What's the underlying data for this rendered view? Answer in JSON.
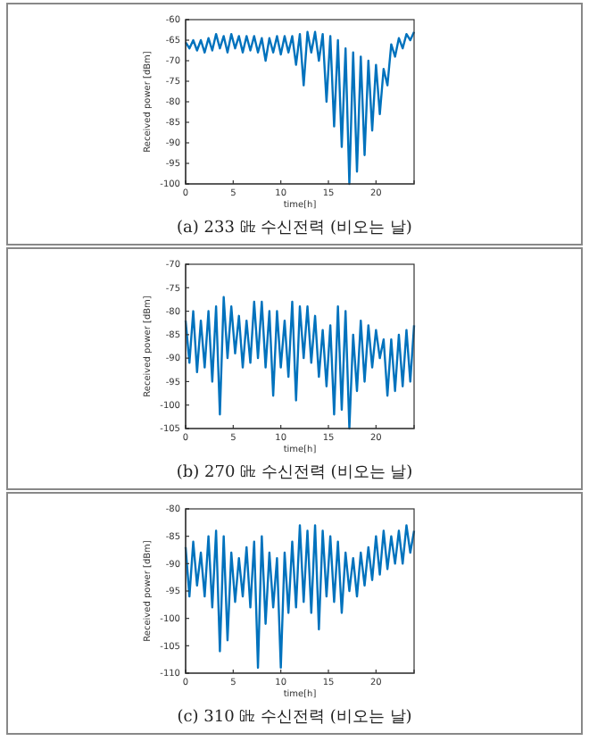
{
  "chart_data": [
    {
      "type": "line",
      "title": "(a) 233 ㎓ 수신전력 (비오는 날)",
      "xlabel": "time[h]",
      "ylabel": "Received power [dBm]",
      "xlim": [
        0,
        24
      ],
      "xticks": [
        0,
        5,
        10,
        15,
        20
      ],
      "ylim": [
        -100,
        -60
      ],
      "yticks": [
        -100,
        -95,
        -90,
        -85,
        -80,
        -75,
        -70,
        -65,
        -60
      ],
      "x": [
        0,
        0.4,
        0.8,
        1.2,
        1.6,
        2.0,
        2.4,
        2.8,
        3.2,
        3.6,
        4.0,
        4.4,
        4.8,
        5.2,
        5.6,
        6.0,
        6.4,
        6.8,
        7.2,
        7.6,
        8.0,
        8.4,
        8.8,
        9.2,
        9.6,
        10.0,
        10.4,
        10.8,
        11.2,
        11.6,
        12.0,
        12.4,
        12.8,
        13.2,
        13.6,
        14.0,
        14.4,
        14.8,
        15.2,
        15.6,
        16.0,
        16.4,
        16.8,
        17.2,
        17.6,
        18.0,
        18.4,
        18.8,
        19.2,
        19.6,
        20.0,
        20.4,
        20.8,
        21.2,
        21.6,
        22.0,
        22.4,
        22.8,
        23.2,
        23.6,
        24.0
      ],
      "series": [
        {
          "color": "#0072bd",
          "values": [
            -65.5,
            -67,
            -65,
            -67.5,
            -65,
            -68,
            -64.5,
            -67.5,
            -63.5,
            -67,
            -64,
            -68,
            -63.5,
            -67,
            -64,
            -68,
            -64,
            -67.5,
            -64,
            -68,
            -64.5,
            -70,
            -64.5,
            -68,
            -64,
            -68.5,
            -64,
            -68,
            -64,
            -71,
            -63.5,
            -76,
            -63,
            -68,
            -63,
            -70,
            -63.5,
            -80,
            -64,
            -86,
            -65,
            -91,
            -67,
            -100,
            -68,
            -97,
            -69,
            -93,
            -70,
            -87,
            -71,
            -83,
            -72,
            -76,
            -66,
            -69,
            -64.5,
            -67,
            -63.5,
            -65,
            -63
          ]
        }
      ]
    },
    {
      "type": "line",
      "title": "(b) 270 ㎓ 수신전력 (비오는 날)",
      "xlabel": "time[h]",
      "ylabel": "Received power [dBm]",
      "xlim": [
        0,
        24
      ],
      "xticks": [
        0,
        5,
        10,
        15,
        20
      ],
      "ylim": [
        -105,
        -70
      ],
      "yticks": [
        -105,
        -100,
        -95,
        -90,
        -85,
        -80,
        -75,
        -70
      ],
      "x": [
        0,
        0.4,
        0.8,
        1.2,
        1.6,
        2.0,
        2.4,
        2.8,
        3.2,
        3.6,
        4.0,
        4.4,
        4.8,
        5.2,
        5.6,
        6.0,
        6.4,
        6.8,
        7.2,
        7.6,
        8.0,
        8.4,
        8.8,
        9.2,
        9.6,
        10.0,
        10.4,
        10.8,
        11.2,
        11.6,
        12.0,
        12.4,
        12.8,
        13.2,
        13.6,
        14.0,
        14.4,
        14.8,
        15.2,
        15.6,
        16.0,
        16.4,
        16.8,
        17.2,
        17.6,
        18.0,
        18.4,
        18.8,
        19.2,
        19.6,
        20.0,
        20.4,
        20.8,
        21.2,
        21.6,
        22.0,
        22.4,
        22.8,
        23.2,
        23.6,
        24.0
      ],
      "series": [
        {
          "color": "#0072bd",
          "values": [
            -82,
            -91,
            -80,
            -93,
            -82,
            -92,
            -80,
            -95,
            -79,
            -102,
            -77,
            -90,
            -79,
            -89,
            -81,
            -92,
            -82,
            -91,
            -78,
            -90,
            -78,
            -92,
            -80,
            -98,
            -80,
            -92,
            -82,
            -94,
            -78,
            -99,
            -79,
            -90,
            -79,
            -91,
            -81,
            -94,
            -84,
            -96,
            -83,
            -102,
            -79,
            -101,
            -80,
            -105,
            -85,
            -97,
            -82,
            -95,
            -83,
            -92,
            -84,
            -90,
            -86,
            -98,
            -86,
            -97,
            -85,
            -96,
            -84,
            -95,
            -83
          ]
        }
      ]
    },
    {
      "type": "line",
      "title": "(c) 310 ㎓ 수신전력 (비오는 날)",
      "xlabel": "time[h]",
      "ylabel": "Received power [dBm]",
      "xlim": [
        0,
        24
      ],
      "xticks": [
        0,
        5,
        10,
        15,
        20
      ],
      "ylim": [
        -110,
        -80
      ],
      "yticks": [
        -110,
        -105,
        -100,
        -95,
        -90,
        -85,
        -80
      ],
      "x": [
        0,
        0.4,
        0.8,
        1.2,
        1.6,
        2.0,
        2.4,
        2.8,
        3.2,
        3.6,
        4.0,
        4.4,
        4.8,
        5.2,
        5.6,
        6.0,
        6.4,
        6.8,
        7.2,
        7.6,
        8.0,
        8.4,
        8.8,
        9.2,
        9.6,
        10.0,
        10.4,
        10.8,
        11.2,
        11.6,
        12.0,
        12.4,
        12.8,
        13.2,
        13.6,
        14.0,
        14.4,
        14.8,
        15.2,
        15.6,
        16.0,
        16.4,
        16.8,
        17.2,
        17.6,
        18.0,
        18.4,
        18.8,
        19.2,
        19.6,
        20.0,
        20.4,
        20.8,
        21.2,
        21.6,
        22.0,
        22.4,
        22.8,
        23.2,
        23.6,
        24.0
      ],
      "series": [
        {
          "color": "#0072bd",
          "values": [
            -87,
            -96,
            -86,
            -94,
            -88,
            -96,
            -85,
            -98,
            -84,
            -106,
            -85,
            -104,
            -88,
            -97,
            -89,
            -96,
            -87,
            -98,
            -86,
            -109,
            -85,
            -101,
            -88,
            -98,
            -89,
            -109,
            -88,
            -99,
            -86,
            -98,
            -83,
            -97,
            -84,
            -99,
            -83,
            -102,
            -84,
            -96,
            -85,
            -97,
            -86,
            -99,
            -88,
            -95,
            -89,
            -96,
            -88,
            -94,
            -87,
            -93,
            -85,
            -92,
            -84,
            -91,
            -85,
            -90,
            -84,
            -90,
            -83,
            -88,
            -84
          ]
        }
      ]
    }
  ]
}
